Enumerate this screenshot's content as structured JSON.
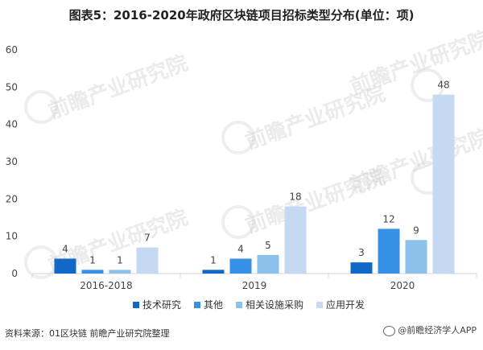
{
  "title": "图表5：2016-2020年政府区块链项目招标类型分布(单位：项)",
  "source": "资料来源：01区块链 前瞻产业研究院整理",
  "watermark_text": "前瞻产业研究院",
  "wechat_logo_text": "@前瞻经济学人APP",
  "colors": {
    "series": [
      "#1168c7",
      "#3590e6",
      "#8cc1ec",
      "#c5d9f2"
    ],
    "axis": "#d6d6d6",
    "text": "#444444"
  },
  "chart_data": {
    "type": "bar",
    "title": "图表5：2016-2020年政府区块链项目招标类型分布(单位：项)",
    "categories": [
      "2016-2018",
      "2019",
      "2020"
    ],
    "series": [
      {
        "name": "技术研究",
        "values": [
          4,
          1,
          3
        ]
      },
      {
        "name": "其他",
        "values": [
          1,
          4,
          12
        ]
      },
      {
        "name": "相关设施采购",
        "values": [
          1,
          5,
          9
        ]
      },
      {
        "name": "应用开发",
        "values": [
          7,
          18,
          48
        ]
      }
    ],
    "yticks": [
      0,
      10,
      20,
      30,
      40,
      50,
      60
    ],
    "ylim": [
      0,
      60
    ],
    "grid": false,
    "legend_position": "bottom"
  }
}
